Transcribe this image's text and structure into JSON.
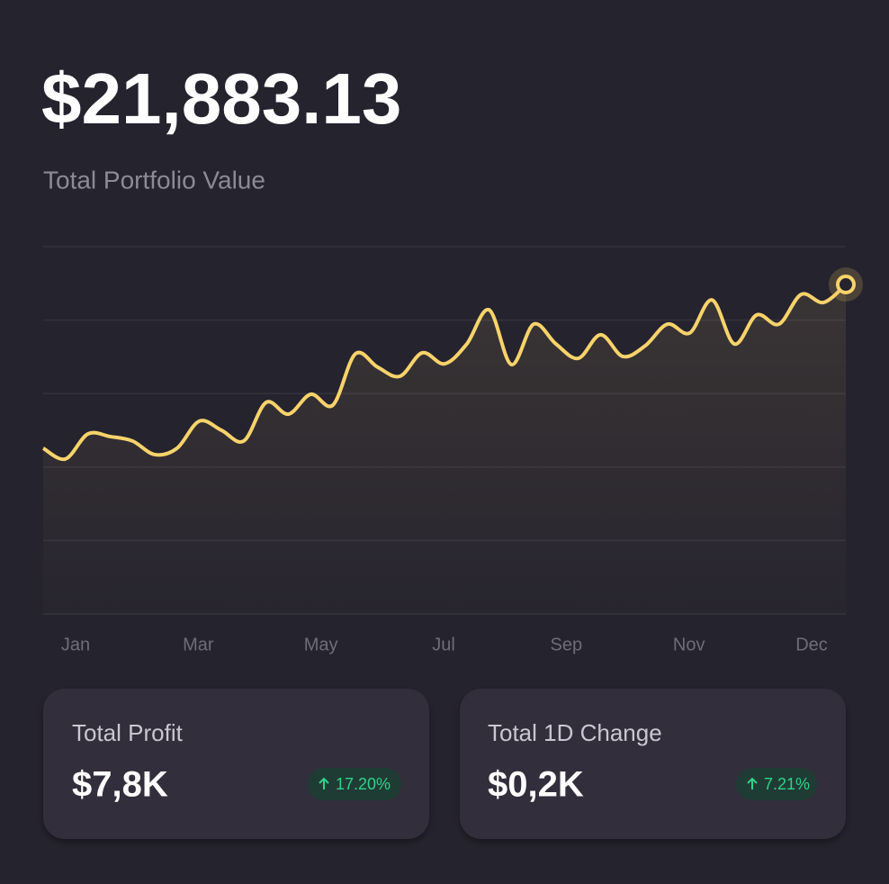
{
  "header": {
    "value": "$21,883.13",
    "label": "Total Portfolio Value"
  },
  "chart_data": {
    "type": "line",
    "x_labels": [
      "Jan",
      "Mar",
      "May",
      "Jul",
      "Sep",
      "Nov",
      "Dec"
    ],
    "values": [
      45.1,
      42.2,
      49.0,
      48.3,
      47.1,
      43.4,
      45.1,
      52.5,
      50.0,
      47.1,
      57.6,
      54.4,
      59.8,
      56.9,
      70.8,
      67.2,
      64.7,
      71.1,
      68.1,
      73.5,
      82.8,
      67.9,
      78.9,
      73.5,
      69.6,
      76.0,
      70.1,
      73.0,
      78.9,
      76.5,
      85.5,
      73.5,
      81.4,
      78.9,
      87.0,
      84.8,
      89.7
    ],
    "color": "#f7d36b",
    "ylim": [
      0,
      100
    ],
    "yticks": [
      0,
      20,
      40,
      60,
      80,
      100
    ],
    "grid": true
  },
  "cards": [
    {
      "title": "Total Profit",
      "value": "$7,8K",
      "change": "17.20%"
    },
    {
      "title": "Total 1D Change",
      "value": "$0,2K",
      "change": "7.21%"
    }
  ]
}
